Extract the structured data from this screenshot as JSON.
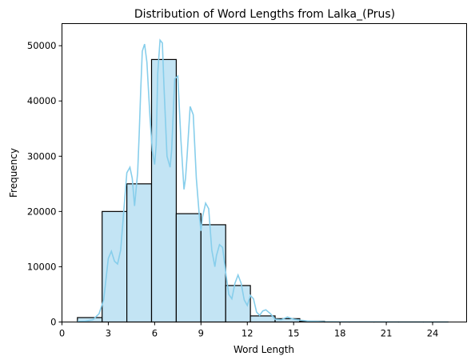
{
  "chart_data": {
    "type": "bar",
    "title": "Distribution of Word Lengths from Lalka_(Prus)",
    "xlabel": "Word Length",
    "ylabel": "Frequency",
    "xlim": [
      0,
      26.2
    ],
    "ylim": [
      0,
      54000
    ],
    "xticks": [
      0,
      3,
      6,
      9,
      12,
      15,
      18,
      21,
      24
    ],
    "yticks": [
      0,
      10000,
      20000,
      30000,
      40000,
      50000
    ],
    "bins": [
      {
        "x0": 1.0,
        "x1": 2.6,
        "value": 800
      },
      {
        "x0": 2.6,
        "x1": 4.2,
        "value": 20000
      },
      {
        "x0": 4.2,
        "x1": 5.8,
        "value": 25000
      },
      {
        "x0": 5.8,
        "x1": 7.4,
        "value": 47500
      },
      {
        "x0": 7.4,
        "x1": 9.0,
        "value": 19600
      },
      {
        "x0": 9.0,
        "x1": 10.6,
        "value": 17600
      },
      {
        "x0": 10.6,
        "x1": 12.2,
        "value": 6600
      },
      {
        "x0": 12.2,
        "x1": 13.8,
        "value": 1100
      },
      {
        "x0": 13.8,
        "x1": 15.4,
        "value": 600
      },
      {
        "x0": 15.4,
        "x1": 17.0,
        "value": 150
      },
      {
        "x0": 17.0,
        "x1": 18.6,
        "value": 40
      },
      {
        "x0": 18.6,
        "x1": 20.2,
        "value": 10
      },
      {
        "x0": 20.2,
        "x1": 21.8,
        "value": 5
      },
      {
        "x0": 21.8,
        "x1": 23.4,
        "value": 3
      },
      {
        "x0": 23.4,
        "x1": 25.0,
        "value": 2
      }
    ],
    "kde": {
      "x": [
        1.0,
        1.5,
        2.0,
        2.4,
        2.7,
        3.0,
        3.2,
        3.4,
        3.6,
        3.8,
        4.0,
        4.2,
        4.4,
        4.55,
        4.7,
        4.9,
        5.0,
        5.1,
        5.2,
        5.35,
        5.5,
        5.7,
        5.85,
        6.0,
        6.1,
        6.2,
        6.35,
        6.5,
        6.6,
        6.8,
        7.0,
        7.1,
        7.3,
        7.5,
        7.7,
        7.9,
        8.0,
        8.1,
        8.3,
        8.5,
        8.7,
        8.9,
        9.0,
        9.1,
        9.3,
        9.5,
        9.7,
        9.9,
        10.0,
        10.2,
        10.4,
        10.6,
        10.8,
        11.0,
        11.2,
        11.4,
        11.6,
        11.8,
        12.0,
        12.2,
        12.4,
        12.6,
        12.8,
        13.0,
        13.2,
        13.5,
        13.8,
        14.2,
        14.6,
        15.0,
        15.5,
        16.0,
        17.0,
        18.0,
        20.0,
        22.0,
        25.0
      ],
      "y": [
        100,
        150,
        400,
        1500,
        4000,
        11500,
        12800,
        11000,
        10500,
        13000,
        20000,
        27000,
        28000,
        26000,
        21000,
        27000,
        34000,
        42000,
        49000,
        50300,
        47000,
        37000,
        31000,
        28500,
        32000,
        45000,
        51000,
        50500,
        43000,
        30000,
        28000,
        31000,
        44000,
        44500,
        33000,
        24000,
        26000,
        30000,
        39000,
        37500,
        26000,
        19000,
        16500,
        19000,
        21500,
        20500,
        13000,
        10000,
        12000,
        14000,
        13500,
        9000,
        5000,
        4200,
        7000,
        8500,
        7000,
        4000,
        3000,
        4800,
        4200,
        1800,
        1200,
        2000,
        2200,
        1500,
        500,
        400,
        900,
        500,
        300,
        150,
        60,
        30,
        20,
        10,
        5
      ]
    },
    "colors": {
      "bar_fill": "#c3e4f4",
      "bar_edge": "#000000",
      "kde_line": "#87ceeb"
    },
    "grid": false,
    "legend": "none"
  }
}
